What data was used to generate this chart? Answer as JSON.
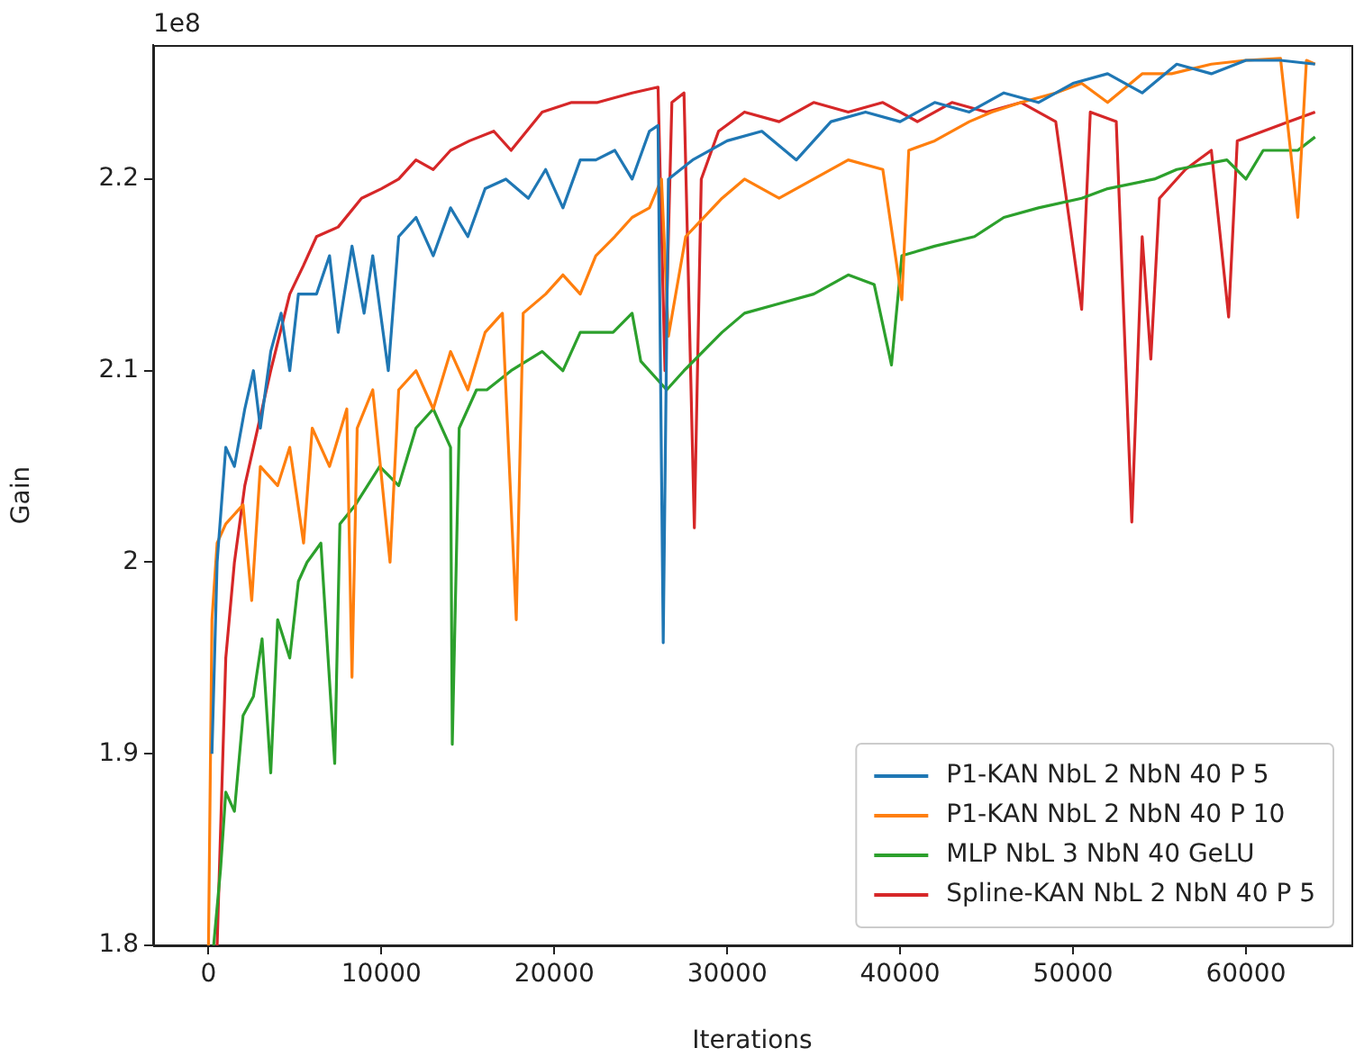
{
  "chart_data": {
    "type": "line",
    "xlabel": "Iterations",
    "ylabel": "Gain",
    "annotations": [
      "1e8"
    ],
    "xlim": [
      -3200,
      66100
    ],
    "xticks": [
      0,
      10000,
      20000,
      30000,
      40000,
      50000,
      60000
    ],
    "ylim": [
      1.8,
      2.27
    ],
    "yticks": [
      1.8,
      1.9,
      2.0,
      2.1,
      2.2
    ],
    "grid": false,
    "legend": "bottom right",
    "marker": "none",
    "line_style": "solid",
    "series": [
      {
        "name": "P1-KAN NbL 2 NbN 40 P 5",
        "color": "#1f77b4",
        "x": [
          200,
          500,
          1000,
          1500,
          2100,
          2600,
          3000,
          3600,
          4200,
          4700,
          5200,
          6250,
          7000,
          7500,
          8300,
          9000,
          9500,
          10400,
          11000,
          12000,
          13000,
          14000,
          15000,
          16000,
          17200,
          18500,
          19500,
          20500,
          21500,
          22400,
          23500,
          24500,
          25500,
          26000,
          26300,
          26600,
          28000,
          30000,
          32000,
          34000,
          36000,
          38000,
          40000,
          42000,
          44000,
          46000,
          48000,
          50000,
          52000,
          54000,
          56000,
          58000,
          60000,
          62000,
          64000
        ],
        "values": [
          1.9,
          2.0,
          2.06,
          2.05,
          2.08,
          2.1,
          2.07,
          2.11,
          2.13,
          2.1,
          2.14,
          2.14,
          2.16,
          2.12,
          2.165,
          2.13,
          2.16,
          2.1,
          2.17,
          2.18,
          2.16,
          2.185,
          2.17,
          2.195,
          2.2,
          2.19,
          2.205,
          2.185,
          2.21,
          2.21,
          2.215,
          2.2,
          2.225,
          2.228,
          1.958,
          2.2,
          2.21,
          2.22,
          2.225,
          2.21,
          2.23,
          2.235,
          2.23,
          2.24,
          2.235,
          2.245,
          2.24,
          2.25,
          2.255,
          2.245,
          2.26,
          2.255,
          2.262,
          2.262,
          2.26
        ]
      },
      {
        "name": "P1-KAN NbL 2 NbN 40 P 10",
        "color": "#ff7f0e",
        "x": [
          0,
          200,
          500,
          1000,
          2000,
          2500,
          3000,
          4000,
          4700,
          5500,
          6000,
          7000,
          8000,
          8300,
          8600,
          9500,
          10500,
          11000,
          12000,
          13000,
          14000,
          15000,
          16000,
          17000,
          17800,
          18200,
          19500,
          20500,
          21500,
          22400,
          23500,
          24500,
          25500,
          26200,
          26600,
          27600,
          29700,
          31000,
          33000,
          35000,
          37000,
          39000,
          40100,
          40500,
          42000,
          44000,
          45300,
          47000,
          49000,
          50500,
          52000,
          54000,
          55700,
          58000,
          60000,
          62000,
          63000,
          63500,
          64000
        ],
        "values": [
          1.8,
          1.97,
          2.01,
          2.02,
          2.03,
          1.98,
          2.05,
          2.04,
          2.06,
          2.01,
          2.07,
          2.05,
          2.08,
          1.94,
          2.07,
          2.09,
          2.0,
          2.09,
          2.1,
          2.08,
          2.11,
          2.09,
          2.12,
          2.13,
          1.97,
          2.13,
          2.14,
          2.15,
          2.14,
          2.16,
          2.17,
          2.18,
          2.185,
          2.2,
          2.118,
          2.17,
          2.19,
          2.2,
          2.19,
          2.2,
          2.21,
          2.205,
          2.137,
          2.215,
          2.22,
          2.23,
          2.235,
          2.24,
          2.245,
          2.25,
          2.24,
          2.255,
          2.255,
          2.26,
          2.262,
          2.263,
          2.18,
          2.262,
          2.26
        ]
      },
      {
        "name": "MLP NbL 3 NbN 40 GeLU",
        "color": "#2ca02c",
        "x": [
          300,
          700,
          1000,
          1500,
          2000,
          2600,
          3100,
          3600,
          4000,
          4700,
          5200,
          5700,
          6500,
          7300,
          7600,
          8500,
          9900,
          11000,
          12000,
          13000,
          14000,
          14100,
          14500,
          15500,
          16100,
          17500,
          19300,
          20500,
          21500,
          23400,
          24500,
          25000,
          26500,
          27500,
          29700,
          31000,
          33000,
          35000,
          37000,
          38500,
          39500,
          40100,
          42000,
          44300,
          46000,
          48000,
          50500,
          52000,
          54700,
          56000,
          58900,
          60000,
          61000,
          63000,
          64000
        ],
        "values": [
          1.8,
          1.84,
          1.88,
          1.87,
          1.92,
          1.93,
          1.96,
          1.89,
          1.97,
          1.95,
          1.99,
          2.0,
          2.01,
          1.895,
          2.02,
          2.03,
          2.05,
          2.04,
          2.07,
          2.08,
          2.06,
          1.905,
          2.07,
          2.09,
          2.09,
          2.1,
          2.11,
          2.1,
          2.12,
          2.12,
          2.13,
          2.105,
          2.09,
          2.1,
          2.12,
          2.13,
          2.135,
          2.14,
          2.15,
          2.145,
          2.103,
          2.16,
          2.165,
          2.17,
          2.18,
          2.185,
          2.19,
          2.195,
          2.2,
          2.205,
          2.21,
          2.2,
          2.215,
          2.215,
          2.222
        ]
      },
      {
        "name": "Spline-KAN NbL 2 NbN 40 P 5",
        "color": "#d62728",
        "x": [
          500,
          1000,
          1500,
          2100,
          2600,
          3600,
          4700,
          5500,
          6250,
          7500,
          8850,
          10000,
          11000,
          12000,
          13000,
          14000,
          15100,
          16500,
          17500,
          19300,
          21000,
          22500,
          24500,
          26000,
          26400,
          26800,
          27500,
          28100,
          28500,
          29500,
          31000,
          33000,
          35000,
          37000,
          39000,
          41000,
          43000,
          45000,
          47000,
          49000,
          50500,
          51000,
          52500,
          53400,
          54000,
          54500,
          55000,
          56500,
          58000,
          59000,
          59500,
          61000,
          62500,
          64000
        ],
        "values": [
          1.8,
          1.95,
          2.0,
          2.04,
          2.06,
          2.1,
          2.14,
          2.155,
          2.17,
          2.175,
          2.19,
          2.195,
          2.2,
          2.21,
          2.205,
          2.215,
          2.22,
          2.225,
          2.215,
          2.235,
          2.24,
          2.24,
          2.245,
          2.248,
          2.1,
          2.24,
          2.245,
          2.018,
          2.2,
          2.225,
          2.235,
          2.23,
          2.24,
          2.235,
          2.24,
          2.23,
          2.24,
          2.235,
          2.24,
          2.23,
          2.132,
          2.235,
          2.23,
          2.021,
          2.17,
          2.106,
          2.19,
          2.205,
          2.215,
          2.128,
          2.22,
          2.225,
          2.23,
          2.235
        ]
      }
    ]
  }
}
